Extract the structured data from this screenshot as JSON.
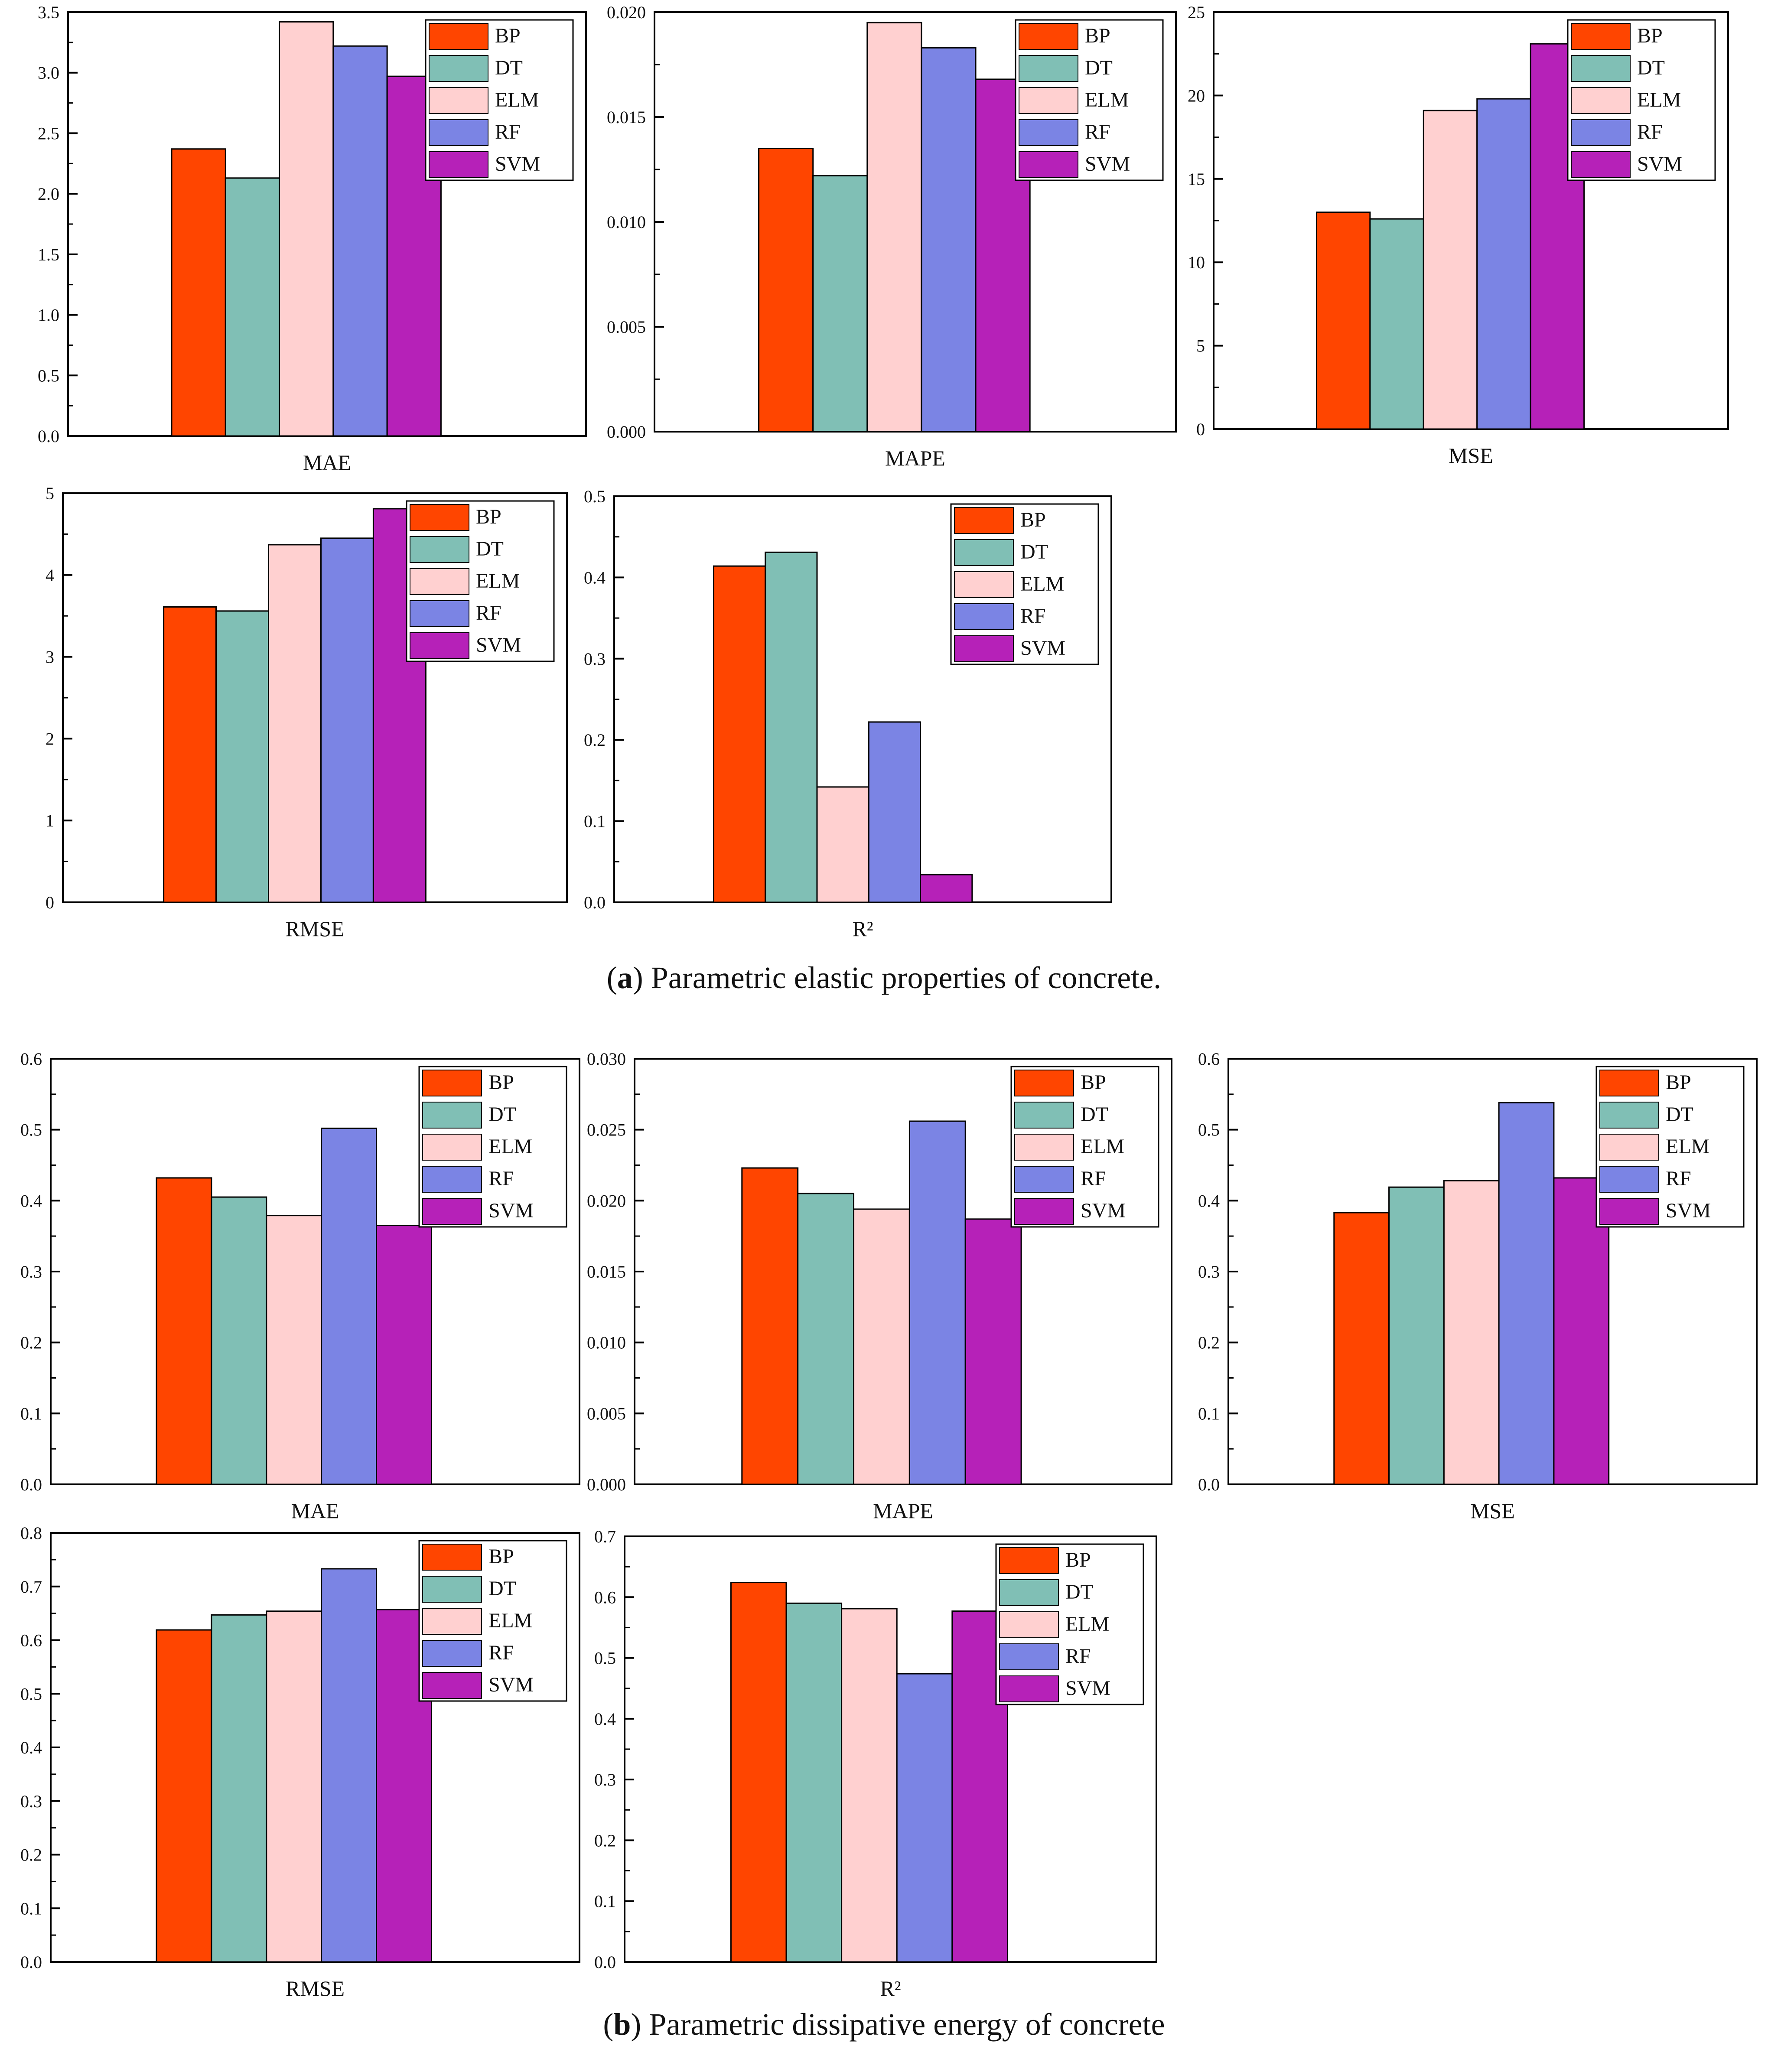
{
  "legend": [
    "BP",
    "DT",
    "ELM",
    "RF",
    "SVM"
  ],
  "colors": {
    "BP": "#ff4500",
    "DT": "#80bfb5",
    "ELM": "#ffd0d0",
    "RF": "#7b84e4",
    "SVM": "#b621b8",
    "axis": "#000000"
  },
  "captions": {
    "a": {
      "label": "a",
      "text": "Parametric elastic properties of concrete."
    },
    "b": {
      "label": "b",
      "text": "Parametric dissipative energy of concrete"
    }
  },
  "chart_data": [
    {
      "id": "a-mae",
      "type": "bar",
      "title": "",
      "xlabel": "MAE",
      "ylim": [
        0,
        3.5
      ],
      "ticks": [
        "0.0",
        "0.5",
        "1.0",
        "1.5",
        "2.0",
        "2.5",
        "3.0",
        "3.5"
      ],
      "categories": [
        "BP",
        "DT",
        "ELM",
        "RF",
        "SVM"
      ],
      "values": [
        2.37,
        2.13,
        3.42,
        3.22,
        2.97
      ],
      "legend_position": "top-right"
    },
    {
      "id": "a-mape",
      "type": "bar",
      "title": "",
      "xlabel": "MAPE",
      "ylim": [
        0,
        0.02
      ],
      "ticks": [
        "0.000",
        "0.005",
        "0.010",
        "0.015",
        "0.020"
      ],
      "categories": [
        "BP",
        "DT",
        "ELM",
        "RF",
        "SVM"
      ],
      "values": [
        0.0135,
        0.0122,
        0.0195,
        0.0183,
        0.0168
      ],
      "legend_position": "top-right"
    },
    {
      "id": "a-mse",
      "type": "bar",
      "title": "",
      "xlabel": "MSE",
      "ylim": [
        0,
        25
      ],
      "ticks": [
        "0",
        "5",
        "10",
        "15",
        "20",
        "25"
      ],
      "categories": [
        "BP",
        "DT",
        "ELM",
        "RF",
        "SVM"
      ],
      "values": [
        13.0,
        12.6,
        19.1,
        19.8,
        23.1
      ],
      "legend_position": "top-right"
    },
    {
      "id": "a-rmse",
      "type": "bar",
      "title": "",
      "xlabel": "RMSE",
      "ylim": [
        0,
        5
      ],
      "ticks": [
        "0",
        "1",
        "2",
        "3",
        "4",
        "5"
      ],
      "categories": [
        "BP",
        "DT",
        "ELM",
        "RF",
        "SVM"
      ],
      "values": [
        3.61,
        3.56,
        4.37,
        4.45,
        4.81
      ],
      "legend_position": "top-right"
    },
    {
      "id": "a-r2",
      "type": "bar",
      "title": "",
      "xlabel": "R²",
      "ylim": [
        0,
        0.5
      ],
      "ticks": [
        "0.0",
        "0.1",
        "0.2",
        "0.3",
        "0.4",
        "0.5"
      ],
      "categories": [
        "BP",
        "DT",
        "ELM",
        "RF",
        "SVM"
      ],
      "values": [
        0.414,
        0.431,
        0.142,
        0.222,
        0.034
      ],
      "legend_position": "top-right"
    },
    {
      "id": "b-mae",
      "type": "bar",
      "title": "",
      "xlabel": "MAE",
      "ylim": [
        0,
        0.6
      ],
      "ticks": [
        "0.0",
        "0.1",
        "0.2",
        "0.3",
        "0.4",
        "0.5",
        "0.6"
      ],
      "categories": [
        "BP",
        "DT",
        "ELM",
        "RF",
        "SVM"
      ],
      "values": [
        0.432,
        0.405,
        0.379,
        0.502,
        0.365
      ],
      "legend_position": "top-right"
    },
    {
      "id": "b-mape",
      "type": "bar",
      "title": "",
      "xlabel": "MAPE",
      "ylim": [
        0,
        0.03
      ],
      "ticks": [
        "0.000",
        "0.005",
        "0.010",
        "0.015",
        "0.020",
        "0.025",
        "0.030"
      ],
      "categories": [
        "BP",
        "DT",
        "ELM",
        "RF",
        "SVM"
      ],
      "values": [
        0.0223,
        0.0205,
        0.0194,
        0.0256,
        0.0187
      ],
      "legend_position": "top-right"
    },
    {
      "id": "b-mse",
      "type": "bar",
      "title": "",
      "xlabel": "MSE",
      "ylim": [
        0,
        0.6
      ],
      "ticks": [
        "0.0",
        "0.1",
        "0.2",
        "0.3",
        "0.4",
        "0.5",
        "0.6"
      ],
      "categories": [
        "BP",
        "DT",
        "ELM",
        "RF",
        "SVM"
      ],
      "values": [
        0.383,
        0.419,
        0.428,
        0.538,
        0.432
      ],
      "legend_position": "top-right"
    },
    {
      "id": "b-rmse",
      "type": "bar",
      "title": "",
      "xlabel": "RMSE",
      "ylim": [
        0,
        0.8
      ],
      "ticks": [
        "0.0",
        "0.1",
        "0.2",
        "0.3",
        "0.4",
        "0.5",
        "0.6",
        "0.7",
        "0.8"
      ],
      "categories": [
        "BP",
        "DT",
        "ELM",
        "RF",
        "SVM"
      ],
      "values": [
        0.619,
        0.647,
        0.654,
        0.733,
        0.657
      ],
      "legend_position": "top-right"
    },
    {
      "id": "b-r2",
      "type": "bar",
      "title": "",
      "xlabel": "R²",
      "ylim": [
        0,
        0.7
      ],
      "ticks": [
        "0.0",
        "0.1",
        "0.2",
        "0.3",
        "0.4",
        "0.5",
        "0.6",
        "0.7"
      ],
      "categories": [
        "BP",
        "DT",
        "ELM",
        "RF",
        "SVM"
      ],
      "values": [
        0.624,
        0.59,
        0.581,
        0.474,
        0.577
      ],
      "legend_position": "top-right"
    }
  ]
}
